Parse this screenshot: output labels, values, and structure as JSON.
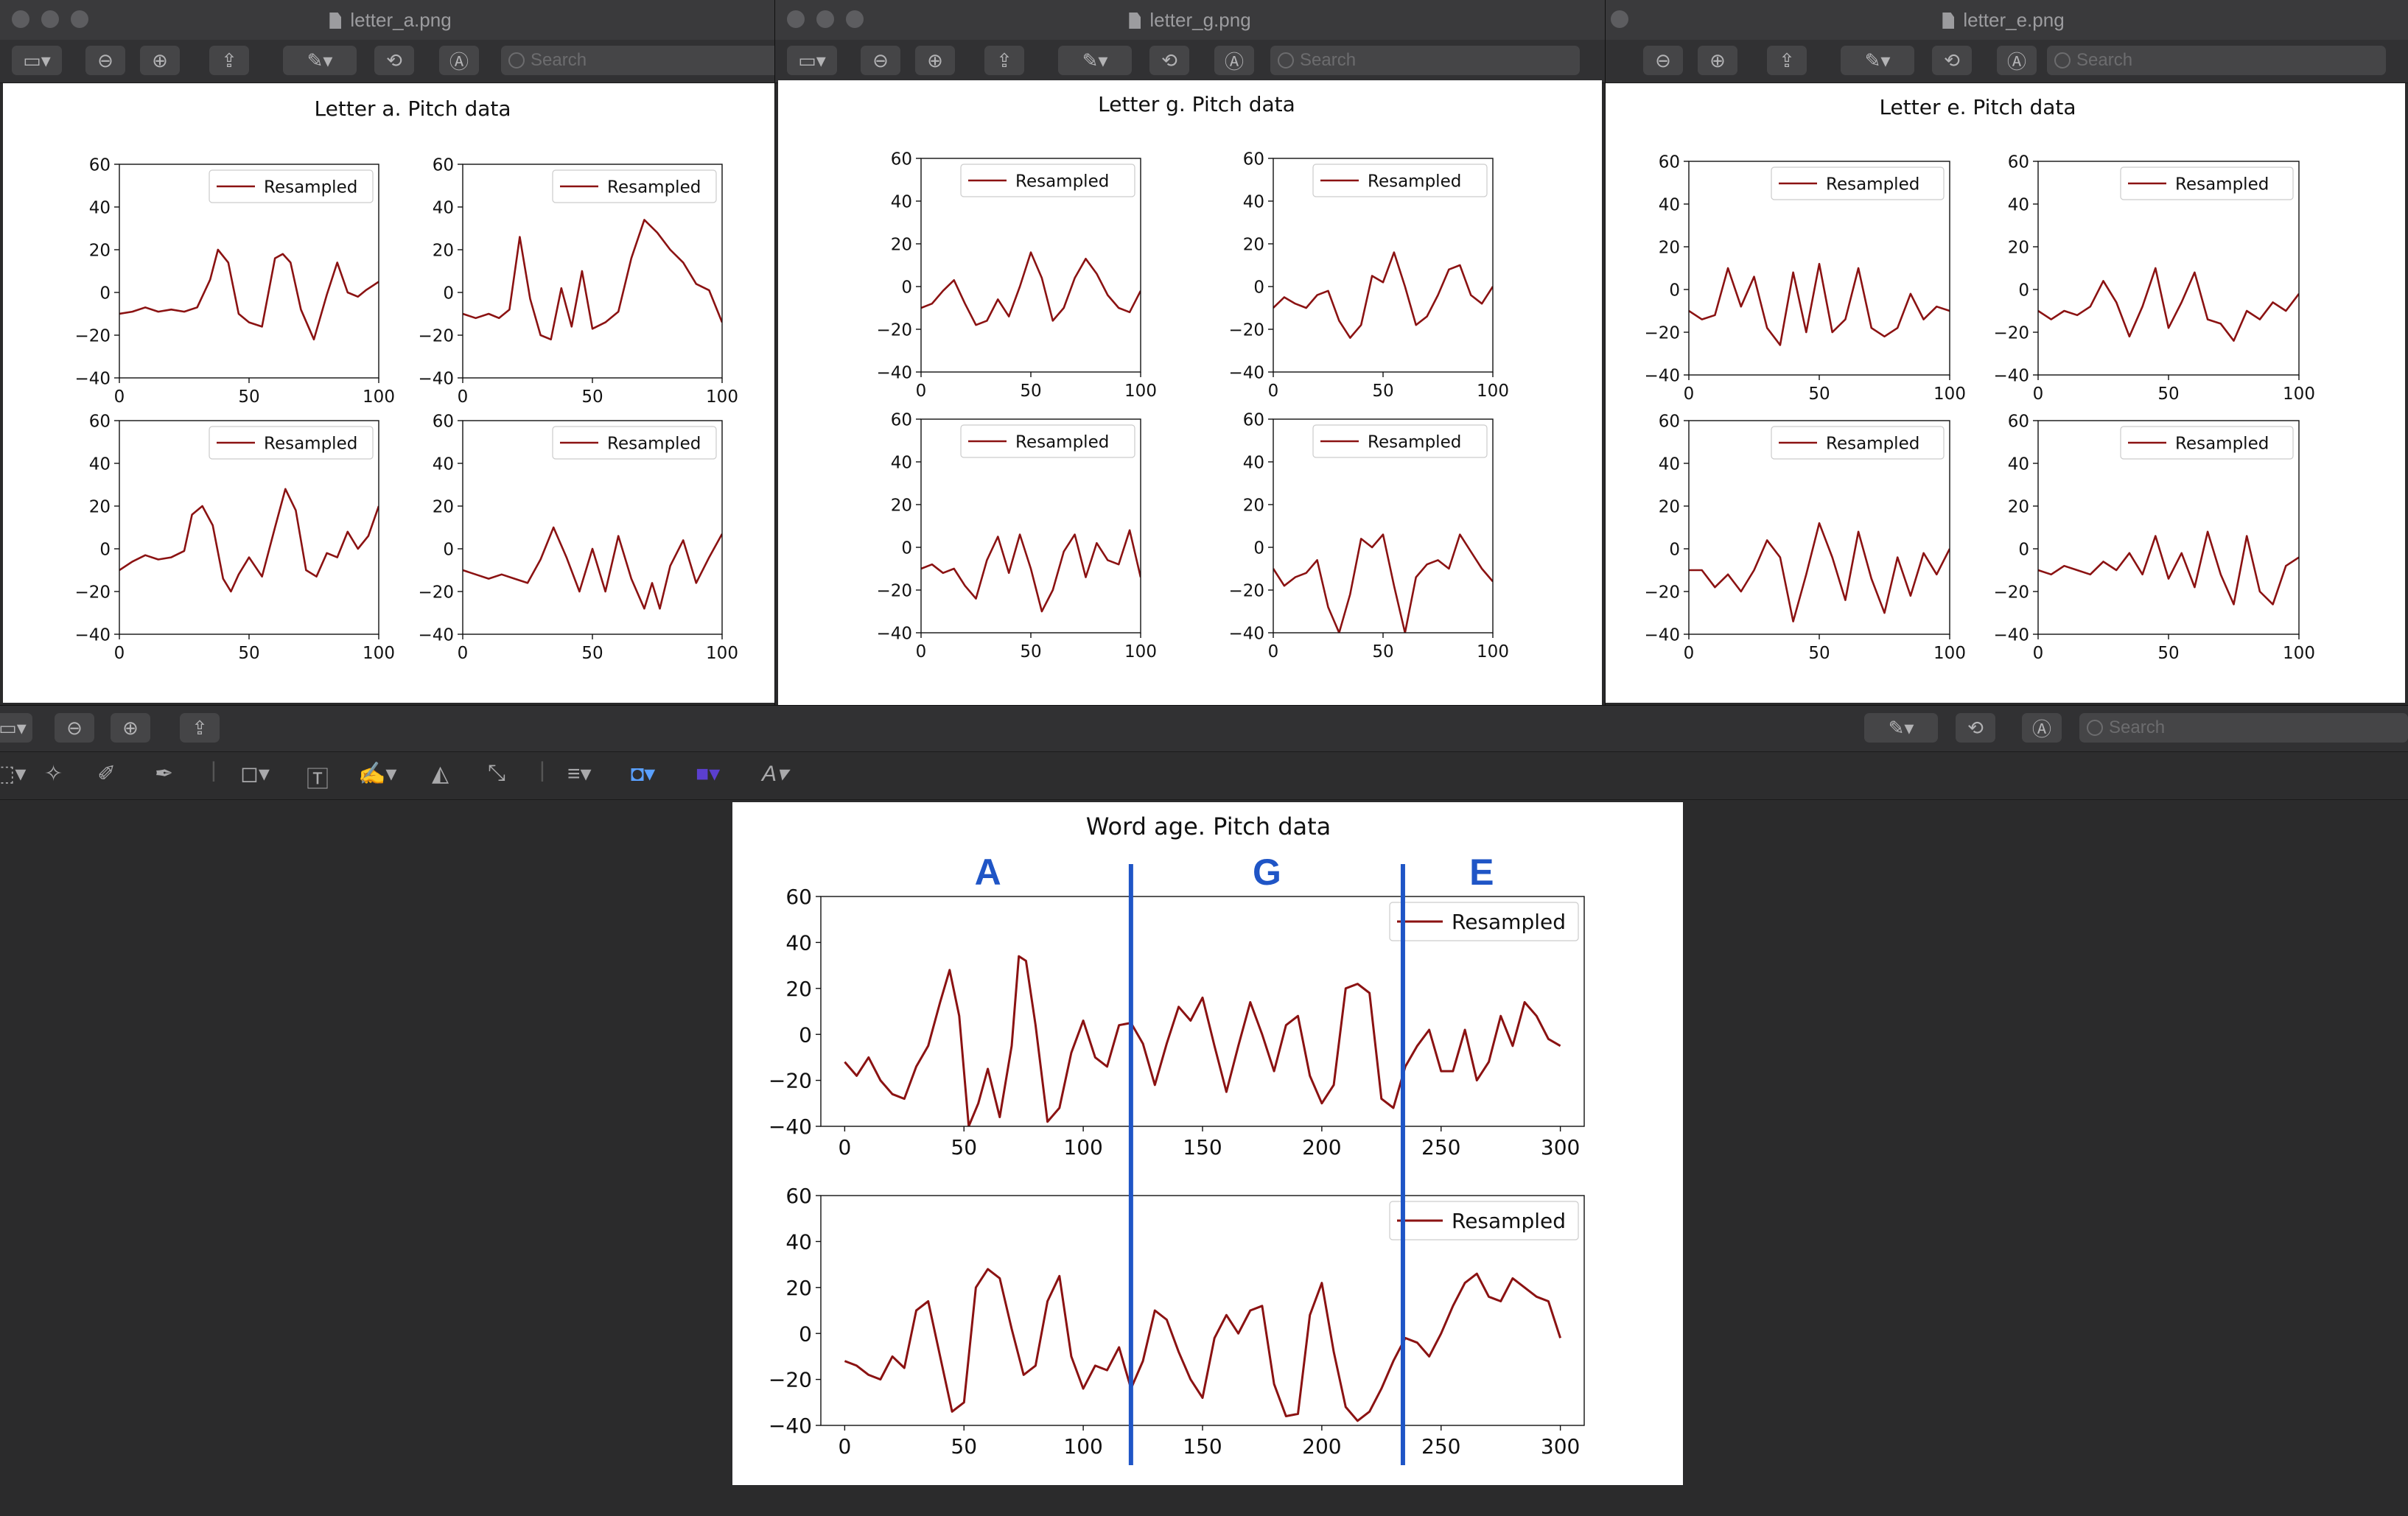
{
  "toolbar": {
    "search_placeholder": "Search"
  },
  "windows": [
    {
      "id": "a",
      "file": "letter_a.png",
      "figure_title": "Letter a. Pitch data"
    },
    {
      "id": "g",
      "file": "letter_g.png",
      "figure_title": "Letter g. Pitch data"
    },
    {
      "id": "e",
      "file": "letter_e.png",
      "figure_title": "Letter e. Pitch data"
    }
  ],
  "word_window": {
    "figure_title": "Word age. Pitch data",
    "segment_labels": [
      "A",
      "G",
      "E"
    ],
    "segment_boundaries_x": [
      120,
      234
    ],
    "boundary_color": "#1f55c6"
  },
  "chart_data": [
    {
      "type": "line",
      "figure": "letter_a",
      "panel": 1,
      "x": [
        0,
        5,
        10,
        15,
        20,
        25,
        30,
        35,
        38,
        42,
        46,
        50,
        55,
        60,
        63,
        66,
        70,
        75,
        80,
        84,
        88,
        92,
        95,
        100
      ],
      "series": [
        {
          "name": "Resampled",
          "color": "#8b1212",
          "values": [
            -10,
            -9,
            -7,
            -9,
            -8,
            -9,
            -7,
            6,
            20,
            14,
            -10,
            -14,
            -16,
            16,
            18,
            14,
            -8,
            -22,
            -1,
            14,
            0,
            -2,
            1,
            5
          ]
        }
      ],
      "xlim": [
        0,
        100
      ],
      "ylim": [
        -40,
        60
      ],
      "xticks": [
        0,
        50,
        100
      ],
      "yticks": [
        -40,
        -20,
        0,
        20,
        40,
        60
      ],
      "legend": "top-right"
    },
    {
      "type": "line",
      "figure": "letter_a",
      "panel": 2,
      "x": [
        0,
        5,
        10,
        14,
        18,
        22,
        26,
        30,
        34,
        38,
        42,
        46,
        50,
        55,
        60,
        65,
        70,
        75,
        80,
        85,
        90,
        95,
        100
      ],
      "series": [
        {
          "name": "Resampled",
          "color": "#8b1212",
          "values": [
            -10,
            -12,
            -10,
            -12,
            -8,
            26,
            -3,
            -20,
            -22,
            2,
            -16,
            10,
            -17,
            -14,
            -9,
            16,
            34,
            28,
            20,
            14,
            4,
            1,
            -14
          ]
        }
      ],
      "xlim": [
        0,
        100
      ],
      "ylim": [
        -40,
        60
      ],
      "xticks": [
        0,
        50,
        100
      ],
      "yticks": [
        -40,
        -20,
        0,
        20,
        40,
        60
      ],
      "legend": "top-right"
    },
    {
      "type": "line",
      "figure": "letter_a",
      "panel": 3,
      "x": [
        0,
        5,
        10,
        15,
        20,
        25,
        28,
        32,
        36,
        40,
        43,
        46,
        50,
        55,
        60,
        64,
        68,
        72,
        76,
        80,
        84,
        88,
        92,
        96,
        100
      ],
      "series": [
        {
          "name": "Resampled",
          "color": "#8b1212",
          "values": [
            -10,
            -6,
            -3,
            -5,
            -4,
            -1,
            16,
            20,
            11,
            -14,
            -20,
            -12,
            -4,
            -13,
            10,
            28,
            18,
            -10,
            -13,
            -2,
            -4,
            8,
            0,
            6,
            20
          ]
        }
      ],
      "xlim": [
        0,
        100
      ],
      "ylim": [
        -40,
        60
      ],
      "xticks": [
        0,
        50,
        100
      ],
      "yticks": [
        -40,
        -20,
        0,
        20,
        40,
        60
      ],
      "legend": "top-right"
    },
    {
      "type": "line",
      "figure": "letter_a",
      "panel": 4,
      "x": [
        0,
        5,
        10,
        15,
        20,
        25,
        30,
        35,
        40,
        45,
        50,
        55,
        60,
        65,
        70,
        73,
        76,
        80,
        85,
        90,
        95,
        100
      ],
      "series": [
        {
          "name": "Resampled",
          "color": "#8b1212",
          "values": [
            -10,
            -12,
            -14,
            -12,
            -14,
            -16,
            -5,
            10,
            -4,
            -20,
            0,
            -20,
            6,
            -14,
            -28,
            -16,
            -28,
            -8,
            4,
            -16,
            -4,
            7
          ]
        }
      ],
      "xlim": [
        0,
        100
      ],
      "ylim": [
        -40,
        60
      ],
      "xticks": [
        0,
        50,
        100
      ],
      "yticks": [
        -40,
        -20,
        0,
        20,
        40,
        60
      ],
      "legend": "top-right"
    },
    {
      "type": "line",
      "figure": "letter_g",
      "panel": 1,
      "x": [
        0,
        5,
        10,
        15,
        20,
        25,
        30,
        35,
        40,
        45,
        50,
        55,
        60,
        65,
        70,
        75,
        80,
        85,
        90,
        95,
        100
      ],
      "series": [
        {
          "name": "Resampled",
          "color": "#8b1212",
          "values": [
            -10,
            -8,
            -2,
            3,
            -8,
            -18,
            -16,
            -6,
            -14,
            0,
            16,
            4,
            -16,
            -10,
            4,
            13,
            6,
            -4,
            -10,
            -12,
            -2
          ]
        }
      ],
      "xlim": [
        0,
        100
      ],
      "ylim": [
        -40,
        60
      ],
      "xticks": [
        0,
        50,
        100
      ],
      "yticks": [
        -40,
        -20,
        0,
        20,
        40,
        60
      ],
      "legend": "top-right"
    },
    {
      "type": "line",
      "figure": "letter_g",
      "panel": 2,
      "x": [
        0,
        5,
        10,
        15,
        20,
        25,
        30,
        35,
        40,
        45,
        50,
        55,
        60,
        65,
        70,
        75,
        80,
        85,
        90,
        95,
        100
      ],
      "series": [
        {
          "name": "Resampled",
          "color": "#8b1212",
          "values": [
            -10,
            -5,
            -8,
            -10,
            -4,
            -2,
            -16,
            -24,
            -18,
            5,
            2,
            16,
            0,
            -18,
            -14,
            -4,
            8,
            10,
            -4,
            -8,
            0
          ]
        }
      ],
      "xlim": [
        0,
        100
      ],
      "ylim": [
        -40,
        60
      ],
      "xticks": [
        0,
        50,
        100
      ],
      "yticks": [
        -40,
        -20,
        0,
        20,
        40,
        60
      ],
      "legend": "top-right"
    },
    {
      "type": "line",
      "figure": "letter_g",
      "panel": 3,
      "x": [
        0,
        5,
        10,
        15,
        20,
        25,
        30,
        35,
        40,
        45,
        50,
        55,
        60,
        65,
        70,
        75,
        80,
        85,
        90,
        95,
        100
      ],
      "series": [
        {
          "name": "Resampled",
          "color": "#8b1212",
          "values": [
            -10,
            -8,
            -12,
            -10,
            -18,
            -24,
            -6,
            5,
            -12,
            6,
            -10,
            -30,
            -20,
            -2,
            6,
            -14,
            2,
            -6,
            -8,
            8,
            -14
          ]
        }
      ],
      "xlim": [
        0,
        100
      ],
      "ylim": [
        -40,
        60
      ],
      "xticks": [
        0,
        50,
        100
      ],
      "yticks": [
        -40,
        -20,
        0,
        20,
        40,
        60
      ],
      "legend": "top-right"
    },
    {
      "type": "line",
      "figure": "letter_g",
      "panel": 4,
      "x": [
        0,
        5,
        10,
        15,
        20,
        25,
        30,
        35,
        40,
        45,
        50,
        55,
        60,
        65,
        70,
        75,
        80,
        85,
        90,
        95,
        100
      ],
      "series": [
        {
          "name": "Resampled",
          "color": "#8b1212",
          "values": [
            -10,
            -18,
            -14,
            -12,
            -6,
            -28,
            -40,
            -22,
            4,
            0,
            6,
            -18,
            -40,
            -14,
            -8,
            -6,
            -10,
            6,
            -2,
            -10,
            -16
          ]
        }
      ],
      "xlim": [
        0,
        100
      ],
      "ylim": [
        -40,
        60
      ],
      "xticks": [
        0,
        50,
        100
      ],
      "yticks": [
        -40,
        -20,
        0,
        20,
        40,
        60
      ],
      "legend": "top-right"
    },
    {
      "type": "line",
      "figure": "letter_e",
      "panel": 1,
      "x": [
        0,
        5,
        10,
        15,
        20,
        25,
        30,
        35,
        40,
        45,
        50,
        55,
        60,
        65,
        70,
        75,
        80,
        85,
        90,
        95,
        100
      ],
      "series": [
        {
          "name": "Resampled",
          "color": "#8b1212",
          "values": [
            -10,
            -14,
            -12,
            10,
            -8,
            6,
            -18,
            -26,
            8,
            -20,
            12,
            -20,
            -14,
            10,
            -18,
            -22,
            -18,
            -2,
            -14,
            -8,
            -10
          ]
        }
      ],
      "xlim": [
        0,
        100
      ],
      "ylim": [
        -40,
        60
      ],
      "xticks": [
        0,
        50,
        100
      ],
      "yticks": [
        -40,
        -20,
        0,
        20,
        40,
        60
      ],
      "legend": "top-right"
    },
    {
      "type": "line",
      "figure": "letter_e",
      "panel": 2,
      "x": [
        0,
        5,
        10,
        15,
        20,
        25,
        30,
        35,
        40,
        45,
        50,
        55,
        60,
        65,
        70,
        75,
        80,
        85,
        90,
        95,
        100
      ],
      "series": [
        {
          "name": "Resampled",
          "color": "#8b1212",
          "values": [
            -10,
            -14,
            -10,
            -12,
            -8,
            4,
            -6,
            -22,
            -8,
            10,
            -18,
            -6,
            8,
            -14,
            -16,
            -24,
            -10,
            -14,
            -6,
            -10,
            -2
          ]
        }
      ],
      "xlim": [
        0,
        100
      ],
      "ylim": [
        -40,
        60
      ],
      "xticks": [
        0,
        50,
        100
      ],
      "yticks": [
        -40,
        -20,
        0,
        20,
        40,
        60
      ],
      "legend": "top-right"
    },
    {
      "type": "line",
      "figure": "letter_e",
      "panel": 3,
      "x": [
        0,
        5,
        10,
        15,
        20,
        25,
        30,
        35,
        40,
        45,
        50,
        55,
        60,
        65,
        70,
        75,
        80,
        85,
        90,
        95,
        100
      ],
      "series": [
        {
          "name": "Resampled",
          "color": "#8b1212",
          "values": [
            -10,
            -10,
            -18,
            -12,
            -20,
            -10,
            4,
            -4,
            -34,
            -12,
            12,
            -4,
            -24,
            8,
            -14,
            -30,
            -4,
            -22,
            -2,
            -12,
            0
          ]
        }
      ],
      "xlim": [
        0,
        100
      ],
      "ylim": [
        -40,
        60
      ],
      "xticks": [
        0,
        50,
        100
      ],
      "yticks": [
        -40,
        -20,
        0,
        20,
        40,
        60
      ],
      "legend": "top-right"
    },
    {
      "type": "line",
      "figure": "letter_e",
      "panel": 4,
      "x": [
        0,
        5,
        10,
        15,
        20,
        25,
        30,
        35,
        40,
        45,
        50,
        55,
        60,
        65,
        70,
        75,
        80,
        85,
        90,
        95,
        100
      ],
      "series": [
        {
          "name": "Resampled",
          "color": "#8b1212",
          "values": [
            -10,
            -12,
            -8,
            -10,
            -12,
            -6,
            -10,
            -2,
            -12,
            6,
            -14,
            -2,
            -18,
            8,
            -12,
            -26,
            6,
            -20,
            -26,
            -8,
            -4
          ]
        }
      ],
      "xlim": [
        0,
        100
      ],
      "ylim": [
        -40,
        60
      ],
      "xticks": [
        0,
        50,
        100
      ],
      "yticks": [
        -40,
        -20,
        0,
        20,
        40,
        60
      ],
      "legend": "top-right"
    },
    {
      "type": "line",
      "figure": "word_age",
      "panel": 1,
      "x": [
        0,
        5,
        10,
        15,
        20,
        25,
        30,
        35,
        40,
        44,
        48,
        52,
        56,
        60,
        65,
        70,
        73,
        76,
        80,
        85,
        90,
        95,
        100,
        105,
        110,
        115,
        120,
        125,
        130,
        135,
        140,
        145,
        150,
        155,
        160,
        165,
        170,
        175,
        180,
        185,
        190,
        195,
        200,
        205,
        210,
        215,
        220,
        225,
        230,
        235,
        240,
        245,
        250,
        255,
        260,
        265,
        270,
        275,
        280,
        285,
        290,
        295,
        300
      ],
      "series": [
        {
          "name": "Resampled",
          "color": "#8b1212",
          "values": [
            -12,
            -18,
            -10,
            -20,
            -26,
            -28,
            -14,
            -5,
            14,
            28,
            8,
            -40,
            -30,
            -15,
            -36,
            -5,
            34,
            32,
            4,
            -38,
            -32,
            -8,
            6,
            -10,
            -14,
            4,
            5,
            -4,
            -22,
            -4,
            12,
            6,
            16,
            -5,
            -25,
            -5,
            14,
            0,
            -16,
            4,
            8,
            -18,
            -30,
            -22,
            20,
            22,
            18,
            -28,
            -32,
            -14,
            -5,
            2,
            -16,
            -16,
            2,
            -20,
            -12,
            8,
            -5,
            14,
            8,
            -2,
            -5
          ]
        }
      ],
      "xlim": [
        -10,
        310
      ],
      "ylim": [
        -40,
        60
      ],
      "xticks": [
        0,
        50,
        100,
        150,
        200,
        250,
        300
      ],
      "yticks": [
        -40,
        -20,
        0,
        20,
        40,
        60
      ],
      "legend": "top-right"
    },
    {
      "type": "line",
      "figure": "word_age",
      "panel": 2,
      "x": [
        0,
        5,
        10,
        15,
        20,
        25,
        30,
        35,
        40,
        45,
        50,
        55,
        60,
        65,
        70,
        75,
        80,
        85,
        90,
        95,
        100,
        105,
        110,
        115,
        120,
        125,
        130,
        135,
        140,
        145,
        150,
        155,
        160,
        165,
        170,
        175,
        180,
        185,
        190,
        195,
        200,
        205,
        210,
        215,
        220,
        225,
        230,
        235,
        240,
        245,
        250,
        255,
        260,
        265,
        270,
        275,
        280,
        285,
        290,
        295,
        300
      ],
      "series": [
        {
          "name": "Resampled",
          "color": "#8b1212",
          "values": [
            -12,
            -14,
            -18,
            -20,
            -10,
            -15,
            10,
            14,
            -10,
            -34,
            -30,
            20,
            28,
            24,
            2,
            -18,
            -14,
            14,
            25,
            -10,
            -24,
            -14,
            -16,
            -6,
            -24,
            -12,
            10,
            6,
            -8,
            -20,
            -28,
            -2,
            8,
            0,
            10,
            12,
            -22,
            -36,
            -35,
            8,
            22,
            -8,
            -32,
            -38,
            -34,
            -24,
            -12,
            -2,
            -4,
            -10,
            0,
            12,
            22,
            26,
            16,
            14,
            24,
            20,
            16,
            14,
            -2
          ]
        }
      ],
      "xlim": [
        -10,
        310
      ],
      "ylim": [
        -40,
        60
      ],
      "xticks": [
        0,
        50,
        100,
        150,
        200,
        250,
        300
      ],
      "yticks": [
        -40,
        -20,
        0,
        20,
        40,
        60
      ],
      "legend": "top-right"
    }
  ]
}
